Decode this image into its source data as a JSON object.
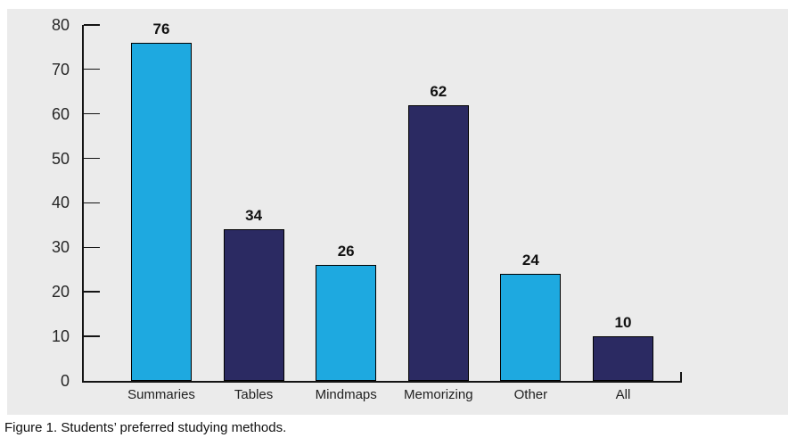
{
  "chart_data": {
    "type": "bar",
    "title": "",
    "categories": [
      "Summaries",
      "Tables",
      "Mindmaps",
      "Memorizing",
      "Other",
      "All"
    ],
    "values": [
      76,
      34,
      26,
      62,
      24,
      10
    ],
    "bar_colors": [
      "#1EA9E0",
      "#2B2A62",
      "#1EA9E0",
      "#2B2A62",
      "#1EA9E0",
      "#2B2A62"
    ],
    "xlabel": "",
    "ylabel": "",
    "ylim": [
      0,
      80
    ],
    "yticks": [
      0,
      10,
      20,
      30,
      40,
      50,
      60,
      70,
      80
    ],
    "grid": false,
    "legend": "none",
    "plot_background": "#EBEBEB",
    "caption": "Figure 1. Students’ preferred studying methods."
  },
  "colors": {
    "bar_primary": "#1EA9E0",
    "bar_secondary": "#2B2A62",
    "axis": "#141414",
    "text": "#1F1F1F",
    "panel_background": "#EBEBEB",
    "page_background": "#FFFFFF"
  }
}
